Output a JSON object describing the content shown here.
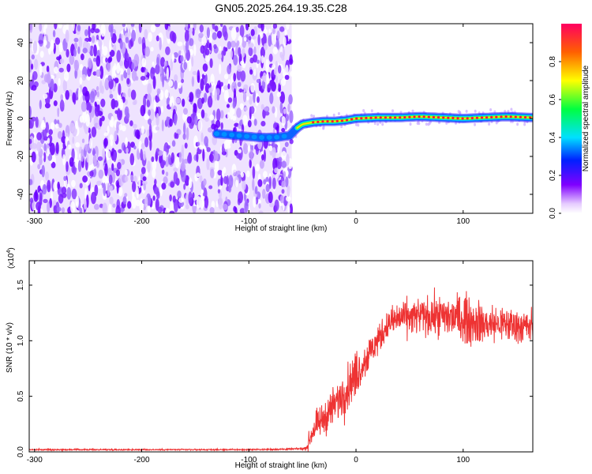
{
  "title": "GN05.2025.264.19.35.C28",
  "chart_data": [
    {
      "type": "heatmap",
      "title": "GN05.2025.264.19.35.C28",
      "xlabel": "Height of straight line (km)",
      "ylabel": "Frequency (Hz)",
      "xlim": [
        -305,
        165
      ],
      "ylim": [
        -50,
        50
      ],
      "xticks": [
        -300,
        -200,
        -100,
        0,
        100
      ],
      "yticks": [
        -40,
        -20,
        0,
        20,
        40
      ],
      "noise_region_x": [
        -305,
        -60
      ],
      "ridge": {
        "x": [
          -130,
          -110,
          -90,
          -75,
          -62,
          -55,
          -50,
          -40,
          -30,
          -20,
          -10,
          0,
          20,
          40,
          60,
          80,
          100,
          120,
          140,
          165
        ],
        "y": [
          -8,
          -9,
          -10,
          -10,
          -9,
          -5,
          -3,
          -2,
          -1.5,
          -1.5,
          -1,
          0,
          0.5,
          0.5,
          1,
          0.5,
          0,
          0.5,
          1,
          0.5
        ]
      },
      "colorbar": {
        "label": "Normalized spectral amplitude",
        "range": [
          0.0,
          1.0
        ],
        "ticks": [
          0.0,
          0.2,
          0.4,
          0.6,
          0.8
        ],
        "tick_labels": [
          "0.0",
          "0.2",
          "0.4",
          "0.6",
          "0.8"
        ]
      }
    },
    {
      "type": "line",
      "xlabel": "Height of straight line (km)",
      "ylabel": "SNR (10 * v/v)",
      "yscale_label": "(x10",
      "yscale_exp": "4",
      "yscale_close": ")",
      "xlim": [
        -305,
        165
      ],
      "ylim": [
        0,
        1.72
      ],
      "xticks": [
        -300,
        -200,
        -100,
        0,
        100
      ],
      "yticks": [
        0.0,
        0.5,
        1.0,
        1.5
      ],
      "ytick_labels": [
        "0.0",
        "0.5",
        "1.0",
        "1.5"
      ],
      "color": "#ee3333",
      "series": [
        {
          "name": "SNR",
          "x": [
            -305,
            -250,
            -200,
            -150,
            -100,
            -60,
            -47,
            -45,
            -40,
            -30,
            -20,
            -10,
            0,
            10,
            20,
            30,
            40,
            60,
            80,
            100,
            120,
            140,
            165
          ],
          "y": [
            0.02,
            0.02,
            0.02,
            0.02,
            0.02,
            0.025,
            0.03,
            0.06,
            0.2,
            0.3,
            0.42,
            0.55,
            0.7,
            0.85,
            1.0,
            1.15,
            1.2,
            1.22,
            1.22,
            1.2,
            1.15,
            1.15,
            1.12
          ],
          "noise": [
            0.003,
            0.003,
            0.003,
            0.003,
            0.003,
            0.004,
            0.006,
            0.03,
            0.06,
            0.07,
            0.09,
            0.1,
            0.1,
            0.08,
            0.07,
            0.06,
            0.08,
            0.08,
            0.09,
            0.11,
            0.09,
            0.08,
            0.08
          ]
        }
      ]
    }
  ]
}
